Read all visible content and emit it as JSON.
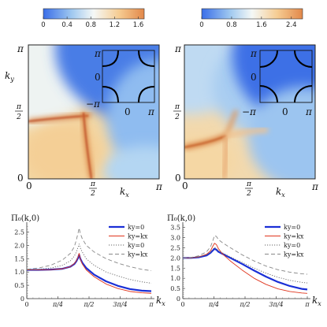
{
  "chart_data": [
    {
      "type": "heatmap",
      "panel": "top-left",
      "colorbar": {
        "ticks": [
          "0",
          "0.4",
          "0.8",
          "1.2",
          "1.6"
        ],
        "range": [
          0,
          1.7
        ]
      },
      "xlabel": "k",
      "xlabel_sub": "x",
      "ylabel": "k",
      "ylabel_sub": "y",
      "xticks": [
        "0",
        "π/2",
        "π"
      ],
      "yticks": [
        "0",
        "π/2",
        "π"
      ],
      "inset": {
        "ticks": [
          "−π",
          "0",
          "π"
        ],
        "fermi_surface": "open arcs around corners"
      }
    },
    {
      "type": "heatmap",
      "panel": "top-right",
      "colorbar": {
        "ticks": [
          "0",
          "0.8",
          "1.6",
          "2.4"
        ],
        "range": [
          0,
          2.7
        ]
      },
      "xlabel": "k",
      "xlabel_sub": "x",
      "xticks": [
        "0",
        "π/2",
        "π"
      ],
      "yticks": [
        "0",
        "π/2",
        "π"
      ],
      "inset": {
        "ticks": [
          "−π",
          "0",
          "π"
        ],
        "fermi_surface": "closed pockets around corners"
      }
    },
    {
      "type": "line",
      "panel": "bottom-left",
      "ylabel": "Π₀(k,0)",
      "xlabel": "k",
      "xlabel_sub": "x",
      "xlim": [
        0,
        3.1416
      ],
      "ylim": [
        0,
        2.75
      ],
      "yticks": [
        "0",
        "0.5",
        "1.0",
        "1.5",
        "2.0",
        "2.5"
      ],
      "xticks": [
        "0",
        "π/4",
        "π/2",
        "3π/4",
        "π"
      ],
      "series": [
        {
          "name": "ky=0",
          "style": "blue-thick",
          "x": [
            0,
            0.3,
            0.6,
            0.9,
            1.1,
            1.2,
            1.25,
            1.3,
            1.32,
            1.35,
            1.4,
            1.5,
            1.7,
            2.0,
            2.3,
            2.6,
            2.9,
            3.1416
          ],
          "y": [
            1.08,
            1.08,
            1.09,
            1.12,
            1.2,
            1.3,
            1.4,
            1.55,
            1.65,
            1.5,
            1.35,
            1.15,
            0.9,
            0.65,
            0.48,
            0.36,
            0.3,
            0.28
          ]
        },
        {
          "name": "ky=kx",
          "style": "red-thin",
          "x": [
            0,
            0.3,
            0.6,
            0.9,
            1.1,
            1.2,
            1.25,
            1.3,
            1.32,
            1.35,
            1.4,
            1.5,
            1.7,
            2.0,
            2.3,
            2.6,
            2.9,
            3.1416
          ],
          "y": [
            1.08,
            1.08,
            1.09,
            1.12,
            1.2,
            1.32,
            1.42,
            1.58,
            1.7,
            1.5,
            1.3,
            1.08,
            0.82,
            0.55,
            0.38,
            0.27,
            0.22,
            0.2
          ]
        },
        {
          "name": "ky=0",
          "style": "gray-dotted",
          "x": [
            0,
            0.3,
            0.6,
            0.9,
            1.1,
            1.2,
            1.25,
            1.3,
            1.32,
            1.35,
            1.4,
            1.5,
            1.7,
            2.0,
            2.3,
            2.6,
            2.9,
            3.1416
          ],
          "y": [
            1.08,
            1.1,
            1.15,
            1.25,
            1.42,
            1.6,
            1.75,
            1.95,
            2.05,
            1.9,
            1.75,
            1.5,
            1.25,
            1.0,
            0.85,
            0.72,
            0.63,
            0.58
          ]
        },
        {
          "name": "ky=kx",
          "style": "gray-dashed",
          "x": [
            0,
            0.3,
            0.6,
            0.9,
            1.1,
            1.2,
            1.25,
            1.3,
            1.32,
            1.35,
            1.4,
            1.5,
            1.7,
            2.0,
            2.3,
            2.6,
            2.9,
            3.1416
          ],
          "y": [
            1.1,
            1.15,
            1.25,
            1.45,
            1.7,
            1.95,
            2.2,
            2.5,
            2.65,
            2.45,
            2.25,
            2.0,
            1.75,
            1.5,
            1.33,
            1.2,
            1.1,
            1.05
          ]
        }
      ]
    },
    {
      "type": "line",
      "panel": "bottom-right",
      "ylabel": "Π₀(k,0)",
      "xlabel": "k",
      "xlabel_sub": "x",
      "xlim": [
        0,
        3.1416
      ],
      "ylim": [
        0,
        3.6
      ],
      "yticks": [
        "0",
        "0.5",
        "1.0",
        "1.5",
        "2.0",
        "2.5",
        "3.0",
        "3.5"
      ],
      "xticks": [
        "0",
        "π/4",
        "π/2",
        "3π/4",
        "π"
      ],
      "series": [
        {
          "name": "ky=0",
          "style": "blue-thick",
          "x": [
            0,
            0.2,
            0.4,
            0.6,
            0.7,
            0.75,
            0.8,
            0.85,
            0.9,
            1.0,
            1.2,
            1.5,
            1.8,
            2.1,
            2.4,
            2.7,
            3.0,
            3.1416
          ],
          "y": [
            2.0,
            2.0,
            2.03,
            2.12,
            2.25,
            2.35,
            2.45,
            2.4,
            2.3,
            2.2,
            2.0,
            1.7,
            1.38,
            1.08,
            0.82,
            0.62,
            0.48,
            0.45
          ]
        },
        {
          "name": "ky=kx",
          "style": "red-thin",
          "x": [
            0,
            0.2,
            0.4,
            0.6,
            0.7,
            0.75,
            0.8,
            0.85,
            0.9,
            1.0,
            1.2,
            1.5,
            1.8,
            2.1,
            2.4,
            2.7,
            3.0,
            3.1416
          ],
          "y": [
            2.0,
            2.0,
            2.05,
            2.18,
            2.35,
            2.55,
            2.72,
            2.65,
            2.45,
            2.2,
            1.85,
            1.4,
            1.0,
            0.7,
            0.48,
            0.35,
            0.28,
            0.26
          ]
        },
        {
          "name": "ky=0",
          "style": "gray-dotted",
          "x": [
            0,
            0.2,
            0.4,
            0.6,
            0.7,
            0.75,
            0.8,
            0.85,
            0.9,
            1.0,
            1.2,
            1.5,
            1.8,
            2.1,
            2.4,
            2.7,
            3.0,
            3.1416
          ],
          "y": [
            2.0,
            2.0,
            2.05,
            2.15,
            2.28,
            2.4,
            2.52,
            2.45,
            2.35,
            2.25,
            2.05,
            1.78,
            1.5,
            1.25,
            1.05,
            0.9,
            0.8,
            0.77
          ]
        },
        {
          "name": "ky=kx",
          "style": "gray-dashed",
          "x": [
            0,
            0.2,
            0.4,
            0.6,
            0.7,
            0.75,
            0.8,
            0.85,
            0.9,
            1.0,
            1.2,
            1.5,
            1.8,
            2.1,
            2.4,
            2.7,
            3.0,
            3.1416
          ],
          "y": [
            2.0,
            2.02,
            2.1,
            2.3,
            2.55,
            2.8,
            3.1,
            3.05,
            2.9,
            2.75,
            2.5,
            2.15,
            1.85,
            1.6,
            1.42,
            1.3,
            1.22,
            1.2
          ]
        }
      ]
    }
  ]
}
